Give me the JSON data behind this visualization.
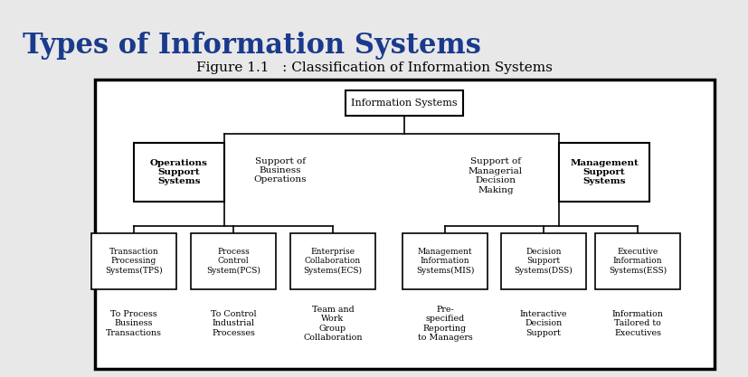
{
  "title": "Types of Information Systems",
  "subtitle": "Figure 1.1   : Classification of Information Systems",
  "title_color": "#1a3a8c",
  "bg_color": "#e8e8e8",
  "diagram_bg": "#ffffff",
  "fig_w": 8.28,
  "fig_h": 4.17,
  "dpi": 100
}
